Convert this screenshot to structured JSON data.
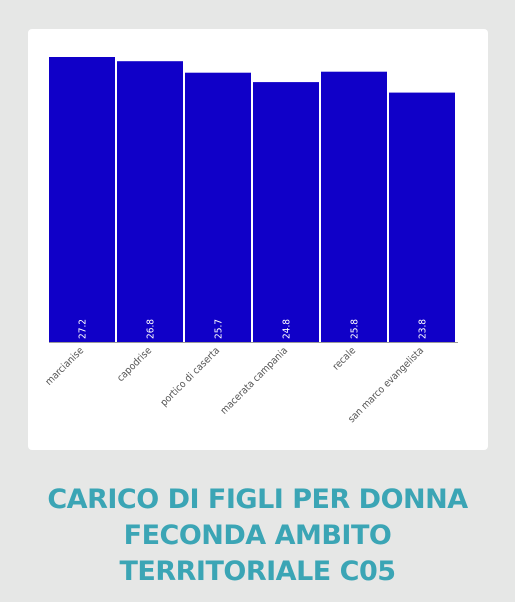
{
  "title_lines": [
    "CARICO DI FIGLI PER DONNA",
    "FECONDA AMBITO",
    "TERRITORIALE C05"
  ],
  "colors": {
    "bar": "#1000c8",
    "title": "#3ba5b5",
    "axis": "#555555"
  },
  "chart_data": {
    "type": "bar",
    "title": "CARICO DI FIGLI PER DONNA FECONDA AMBITO TERRITORIALE C05",
    "categories": [
      "marcianise",
      "capodrise",
      "portico di caserta",
      "macerata campania",
      "recale",
      "san marco evangelista"
    ],
    "values": [
      27.2,
      26.8,
      25.7,
      24.8,
      25.8,
      23.8
    ],
    "ylim": [
      0,
      27.2
    ],
    "grid": false,
    "legend": "none"
  }
}
